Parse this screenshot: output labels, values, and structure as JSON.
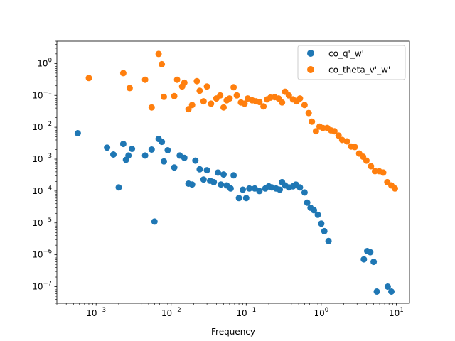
{
  "chart_data": {
    "type": "scatter",
    "xlabel": "Frequency",
    "ylabel": "",
    "title": "",
    "x_scale": "log",
    "y_scale": "log",
    "xlim": [
      0.0003,
      15
    ],
    "ylim": [
      3e-08,
      5
    ],
    "grid": false,
    "legend_position": "top-right",
    "x_ticks": [
      {
        "value": 0.001,
        "base": "10",
        "exp": "−3"
      },
      {
        "value": 0.01,
        "base": "10",
        "exp": "−2"
      },
      {
        "value": 0.1,
        "base": "10",
        "exp": "−1"
      },
      {
        "value": 1,
        "base": "10",
        "exp": "0"
      },
      {
        "value": 10,
        "base": "10",
        "exp": "1"
      }
    ],
    "y_ticks": [
      {
        "value": 1e-07,
        "base": "10",
        "exp": "−7"
      },
      {
        "value": 1e-06,
        "base": "10",
        "exp": "−6"
      },
      {
        "value": 1e-05,
        "base": "10",
        "exp": "−5"
      },
      {
        "value": 0.0001,
        "base": "10",
        "exp": "−4"
      },
      {
        "value": 0.001,
        "base": "10",
        "exp": "−3"
      },
      {
        "value": 0.01,
        "base": "10",
        "exp": "−2"
      },
      {
        "value": 0.1,
        "base": "10",
        "exp": "−1"
      },
      {
        "value": 1,
        "base": "10",
        "exp": "0"
      }
    ],
    "series": [
      {
        "name": "co_q'_w'",
        "color": "#1f77b4",
        "points": [
          [
            0.00057,
            0.0065
          ],
          [
            0.0014,
            0.0023
          ],
          [
            0.0017,
            0.0014
          ],
          [
            0.002,
            0.00013
          ],
          [
            0.0023,
            0.003
          ],
          [
            0.0025,
            0.00095
          ],
          [
            0.0027,
            0.0013
          ],
          [
            0.003,
            0.0021
          ],
          [
            0.0045,
            0.0013
          ],
          [
            0.0055,
            0.002
          ],
          [
            0.006,
            1.1e-05
          ],
          [
            0.0068,
            0.0043
          ],
          [
            0.0075,
            0.0035
          ],
          [
            0.008,
            0.00085
          ],
          [
            0.009,
            0.0019
          ],
          [
            0.011,
            0.00055
          ],
          [
            0.013,
            0.0013
          ],
          [
            0.015,
            0.0011
          ],
          [
            0.017,
            0.00017
          ],
          [
            0.019,
            0.00016
          ],
          [
            0.021,
            0.0009
          ],
          [
            0.024,
            0.00048
          ],
          [
            0.027,
            0.00023
          ],
          [
            0.03,
            0.00045
          ],
          [
            0.033,
            0.00021
          ],
          [
            0.037,
            0.00019
          ],
          [
            0.042,
            0.00038
          ],
          [
            0.046,
            0.00016
          ],
          [
            0.05,
            0.00033
          ],
          [
            0.055,
            0.00015
          ],
          [
            0.062,
            0.00012
          ],
          [
            0.068,
            0.00031
          ],
          [
            0.08,
            6e-05
          ],
          [
            0.09,
            0.00011
          ],
          [
            0.1,
            6e-05
          ],
          [
            0.11,
            0.00012
          ],
          [
            0.13,
            0.00012
          ],
          [
            0.15,
            0.0001
          ],
          [
            0.18,
            0.00012
          ],
          [
            0.2,
            0.00014
          ],
          [
            0.22,
            0.00013
          ],
          [
            0.25,
            0.00012
          ],
          [
            0.28,
            0.00011
          ],
          [
            0.3,
            0.00019
          ],
          [
            0.33,
            0.00015
          ],
          [
            0.37,
            0.00013
          ],
          [
            0.42,
            0.00014
          ],
          [
            0.46,
            0.00016
          ],
          [
            0.52,
            0.00013
          ],
          [
            0.6,
            9e-05
          ],
          [
            0.65,
            4.3e-05
          ],
          [
            0.72,
            3e-05
          ],
          [
            0.8,
            2.5e-05
          ],
          [
            0.9,
            1.8e-05
          ],
          [
            1,
            9.5e-06
          ],
          [
            1.1,
            5.5e-06
          ],
          [
            1.25,
            2.7e-06
          ],
          [
            3.7,
            7.2e-07
          ],
          [
            4.1,
            1.3e-06
          ],
          [
            4.5,
            1.2e-06
          ],
          [
            5,
            6e-07
          ],
          [
            5.5,
            7e-08
          ],
          [
            7.7,
            1e-07
          ],
          [
            8.6,
            7e-08
          ]
        ]
      },
      {
        "name": "co_theta_v'_w'",
        "color": "#ff7f0e",
        "points": [
          [
            0.0008,
            0.35
          ],
          [
            0.0023,
            0.5
          ],
          [
            0.0028,
            0.17
          ],
          [
            0.0045,
            0.31
          ],
          [
            0.0055,
            0.042
          ],
          [
            0.0068,
            2
          ],
          [
            0.0075,
            0.95
          ],
          [
            0.008,
            0.09
          ],
          [
            0.011,
            0.095
          ],
          [
            0.012,
            0.31
          ],
          [
            0.014,
            0.19
          ],
          [
            0.015,
            0.25
          ],
          [
            0.017,
            0.037
          ],
          [
            0.019,
            0.05
          ],
          [
            0.022,
            0.28
          ],
          [
            0.024,
            0.14
          ],
          [
            0.027,
            0.065
          ],
          [
            0.03,
            0.19
          ],
          [
            0.034,
            0.055
          ],
          [
            0.04,
            0.08
          ],
          [
            0.045,
            0.1
          ],
          [
            0.05,
            0.042
          ],
          [
            0.055,
            0.07
          ],
          [
            0.06,
            0.08
          ],
          [
            0.068,
            0.18
          ],
          [
            0.075,
            0.1
          ],
          [
            0.085,
            0.06
          ],
          [
            0.095,
            0.055
          ],
          [
            0.105,
            0.08
          ],
          [
            0.12,
            0.07
          ],
          [
            0.135,
            0.065
          ],
          [
            0.15,
            0.062
          ],
          [
            0.17,
            0.045
          ],
          [
            0.19,
            0.075
          ],
          [
            0.21,
            0.085
          ],
          [
            0.24,
            0.088
          ],
          [
            0.27,
            0.08
          ],
          [
            0.3,
            0.06
          ],
          [
            0.33,
            0.13
          ],
          [
            0.37,
            0.1
          ],
          [
            0.42,
            0.075
          ],
          [
            0.47,
            0.065
          ],
          [
            0.52,
            0.08
          ],
          [
            0.6,
            0.05
          ],
          [
            0.68,
            0.028
          ],
          [
            0.75,
            0.015
          ],
          [
            0.85,
            0.0075
          ],
          [
            0.95,
            0.0105
          ],
          [
            1.05,
            0.0095
          ],
          [
            1.2,
            0.0095
          ],
          [
            1.35,
            0.008
          ],
          [
            1.5,
            0.0075
          ],
          [
            1.7,
            0.0055
          ],
          [
            1.9,
            0.004
          ],
          [
            2.2,
            0.0036
          ],
          [
            2.5,
            0.0025
          ],
          [
            2.8,
            0.0024
          ],
          [
            3.2,
            0.0015
          ],
          [
            3.6,
            0.0012
          ],
          [
            4,
            0.0009
          ],
          [
            4.6,
            0.0006
          ],
          [
            5.2,
            0.00042
          ],
          [
            5.9,
            0.00042
          ],
          [
            6.7,
            0.00038
          ],
          [
            7.6,
            0.00019
          ],
          [
            8.6,
            0.00015
          ],
          [
            9.6,
            0.00012
          ]
        ]
      }
    ]
  }
}
